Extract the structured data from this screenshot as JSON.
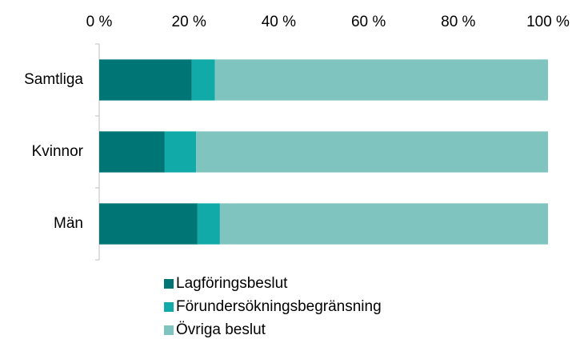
{
  "chart_data": {
    "type": "stacked_bar_horizontal",
    "categories": [
      "Samtliga",
      "Kvinnor",
      "Män"
    ],
    "series": [
      {
        "name": "Lagföringsbeslut",
        "color": "#007575",
        "values": [
          20.6,
          14.6,
          21.9
        ]
      },
      {
        "name": "Förundersökningsbegränsning",
        "color": "#12aaa8",
        "values": [
          5.2,
          7.0,
          5.0
        ]
      },
      {
        "name": "Övriga beslut",
        "color": "#7fc4bf",
        "values": [
          74.2,
          78.4,
          73.1
        ]
      }
    ],
    "xlim": [
      0,
      100
    ],
    "xticks": [
      {
        "value": 0,
        "label": "0 %"
      },
      {
        "value": 20,
        "label": "20 %"
      },
      {
        "value": 40,
        "label": "40 %"
      },
      {
        "value": 60,
        "label": "60 %"
      },
      {
        "value": 80,
        "label": "80 %"
      },
      {
        "value": 100,
        "label": "100 %"
      }
    ],
    "legend": "bottom"
  }
}
